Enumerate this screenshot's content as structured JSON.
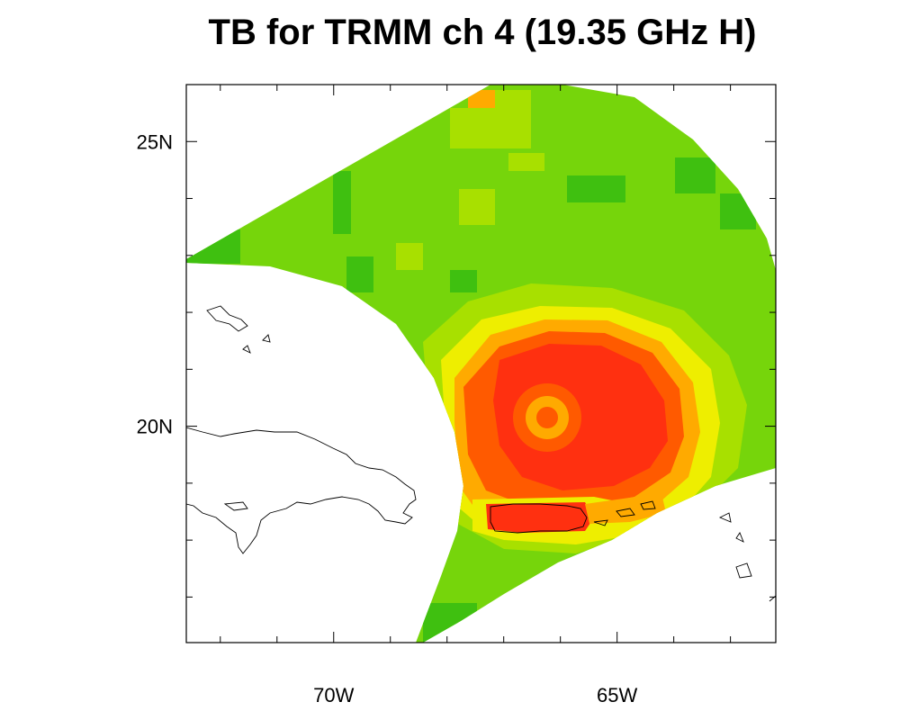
{
  "title": "TB for TRMM ch 4 (19.35 GHz H)",
  "map": {
    "lon_range": [
      -72.6,
      -62.2
    ],
    "lat_range": [
      16.2,
      26.0
    ],
    "lon_ticks": [
      {
        "value": -70,
        "label": "70W"
      },
      {
        "value": -65,
        "label": "65W"
      }
    ],
    "lat_ticks": [
      {
        "value": 25,
        "label": "25N"
      },
      {
        "value": 20,
        "label": "20N"
      }
    ],
    "colors": {
      "dark_green": "#3fc010",
      "green": "#76d50b",
      "yellow_green": "#a8e000",
      "yellow": "#eeee00",
      "orange": "#ffaa00",
      "orange_red": "#ff5a00",
      "red": "#ff3010",
      "coast": "#000000"
    }
  }
}
